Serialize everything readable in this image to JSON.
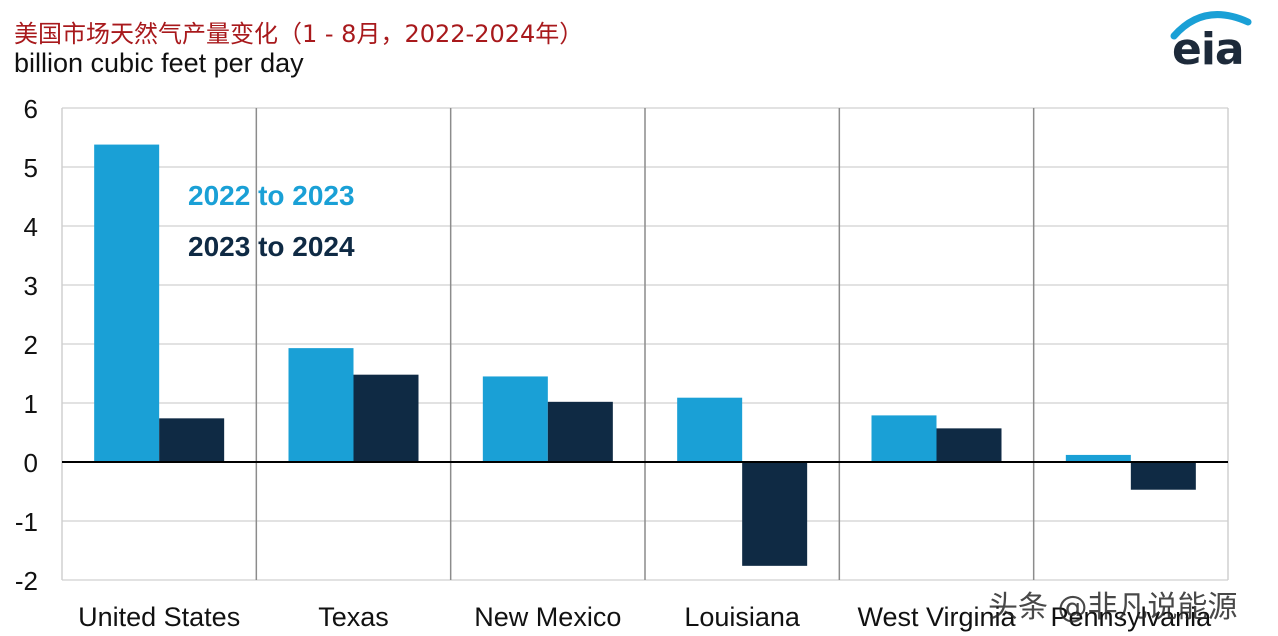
{
  "header": {
    "title": "美国市场天然气产量变化（1 - 8月，2022-2024年）",
    "subtitle": "billion cubic feet per day",
    "logo": "eia"
  },
  "watermark": "头条 @非凡说能源",
  "chart_data": {
    "type": "bar",
    "categories": [
      "United States",
      "Texas",
      "New Mexico",
      "Louisiana",
      "West Virginia",
      "Pennsylvania"
    ],
    "series": [
      {
        "name": "2022 to 2023",
        "color": "#1aa0d6",
        "values": [
          5.38,
          1.93,
          1.45,
          1.09,
          0.79,
          0.12
        ]
      },
      {
        "name": "2023 to 2024",
        "color": "#0f2a44",
        "values": [
          0.74,
          1.48,
          1.02,
          -1.76,
          0.57,
          -0.47
        ]
      }
    ],
    "ylim": [
      -2,
      6
    ],
    "yticks": [
      "6",
      "5",
      "4",
      "3",
      "2",
      "1",
      "0",
      "-1",
      "-2"
    ],
    "xlabel": "",
    "ylabel": "",
    "grid": true,
    "legend": "inside-top-left"
  }
}
